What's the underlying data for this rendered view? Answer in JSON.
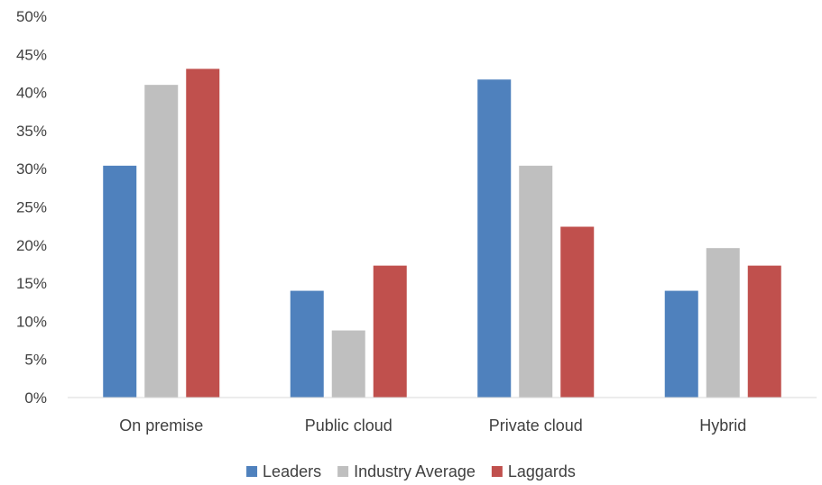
{
  "chart_data": {
    "type": "bar",
    "title": "",
    "xlabel": "",
    "ylabel": "",
    "categories": [
      "On premise",
      "Public cloud",
      "Private cloud",
      "Hybrid"
    ],
    "series": [
      {
        "name": "Leaders",
        "color": "#4f81bd",
        "values": [
          30.4,
          14.0,
          41.7,
          14.0
        ]
      },
      {
        "name": "Industry Average",
        "color": "#bfbfbf",
        "values": [
          41.0,
          8.8,
          30.4,
          19.6
        ]
      },
      {
        "name": "Laggards",
        "color": "#c0504d",
        "values": [
          43.1,
          17.3,
          22.4,
          17.3
        ]
      }
    ],
    "ylim": [
      0,
      50
    ],
    "yticks": [
      "0%",
      "5%",
      "10%",
      "15%",
      "20%",
      "25%",
      "30%",
      "35%",
      "40%",
      "45%",
      "50%"
    ],
    "grid": false,
    "legend_position": "bottom"
  }
}
